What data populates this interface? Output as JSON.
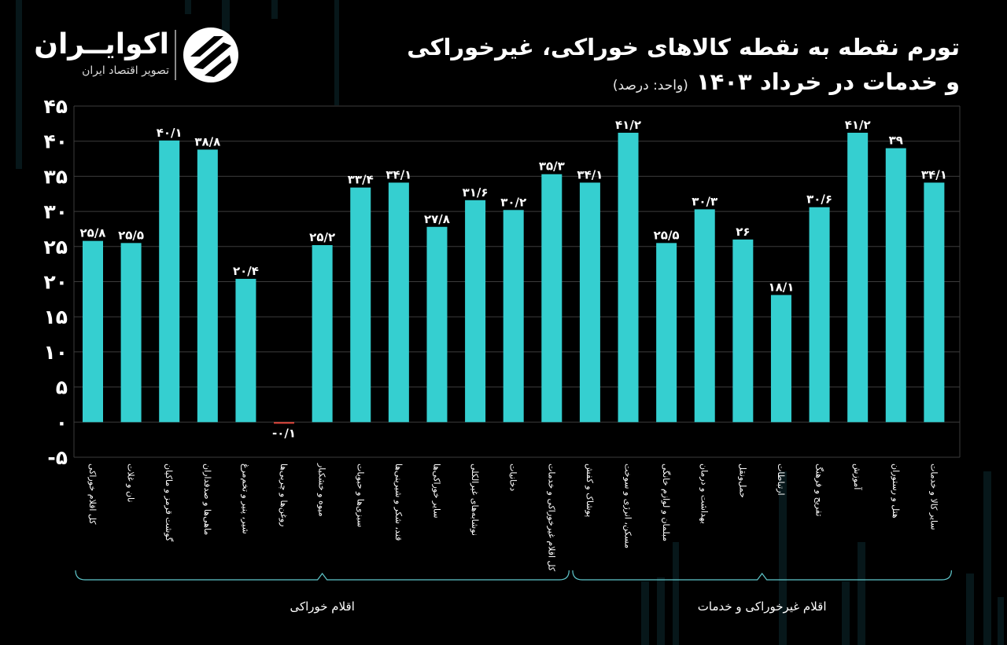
{
  "header": {
    "title_line1": "تورم نقطه به نقطه کالاهای خوراکی، غیرخوراکی",
    "title_line2": "و خدمات در خرداد ۱۴۰۳",
    "unit": "(واحد: درصد)"
  },
  "logo": {
    "name": "اکوایــران",
    "subtitle": "تصویر اقتصاد ایران"
  },
  "colors": {
    "positive_bar": "#35CFD0",
    "negative_bar": "#E0453A",
    "gridline": "#3c3c3c",
    "axis_text": "#ffffff",
    "bracket": "#5fc8cc"
  },
  "chart_data": {
    "type": "bar",
    "title": "تورم نقطه به نقطه کالاهای خوراکی، غیرخوراکی و خدمات در خرداد ۱۴۰۳",
    "ylabel": "",
    "xlabel": "",
    "ylim": [
      -5,
      45
    ],
    "yticks": [
      -5,
      0,
      5,
      10,
      15,
      20,
      25,
      30,
      35,
      40,
      45
    ],
    "ytick_labels": [
      "-۵",
      "۰",
      "۵",
      "۱۰",
      "۱۵",
      "۲۰",
      "۲۵",
      "۳۰",
      "۳۵",
      "۴۰",
      "۴۵"
    ],
    "grid": true,
    "categories": [
      "کل اقلام خوراکی",
      "نان و غلات",
      "گوشت قرمز و ماکیان",
      "ماهی‌ها و صدفداران",
      "شیر، پنیر و تخم‌مرغ",
      "روغن‌ها و چربی‌ها",
      "میوه و خشکبار",
      "سبزی‌ها و حبوبات",
      "قند، شکر و شیرینی‌ها",
      "سایر خوراکی‌ها",
      "نوشابه‌های غیرالکلی",
      "دخانیات",
      "کل اقلام غیرخوراکی و خدمات",
      "پوشاک و کفش",
      "مسکن، انرژی و سوخت",
      "مبلمان و لوازم خانگی",
      "بهداشت و درمان",
      "حمل‌ونقل",
      "ارتباطات",
      "تفریح و فرهنگ",
      "آموزش",
      "هتل و رستوران",
      "سایر کالا و خدمات"
    ],
    "values": [
      25.8,
      25.5,
      40.1,
      38.8,
      20.4,
      -0.1,
      25.2,
      33.4,
      34.1,
      27.8,
      31.6,
      30.2,
      35.3,
      34.1,
      41.2,
      25.5,
      30.3,
      26,
      18.1,
      30.6,
      41.2,
      39,
      34.1
    ],
    "value_labels": [
      "۲۵/۸",
      "۲۵/۵",
      "۴۰/۱",
      "۳۸/۸",
      "۲۰/۴",
      "-۰/۱",
      "۲۵/۲",
      "۳۳/۴",
      "۳۴/۱",
      "۲۷/۸",
      "۳۱/۶",
      "۳۰/۲",
      "۳۵/۳",
      "۳۴/۱",
      "۴۱/۲",
      "۲۵/۵",
      "۳۰/۳",
      "۲۶",
      "۱۸/۱",
      "۳۰/۶",
      "۴۱/۲",
      "۳۹",
      "۳۴/۱"
    ],
    "groups": [
      {
        "label": "اقلام خوراکی",
        "from": 0,
        "to": 12
      },
      {
        "label": "اقلام غیرخوراکی و خدمات",
        "from": 13,
        "to": 22
      }
    ]
  }
}
